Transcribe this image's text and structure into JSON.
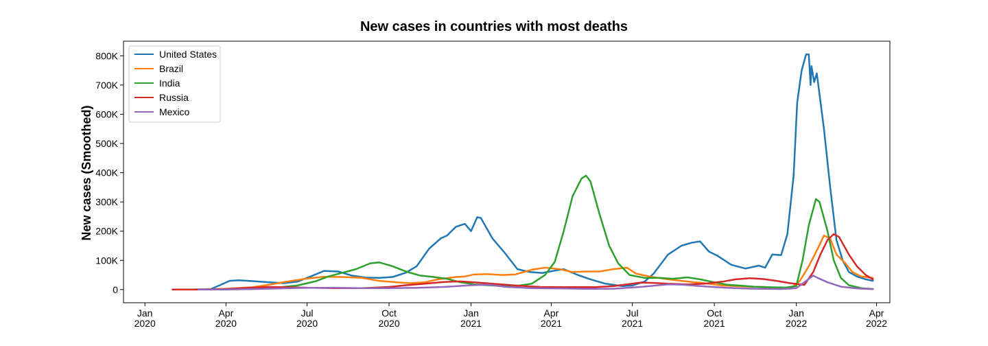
{
  "chart_data": {
    "type": "line",
    "title": "New cases in countries with most deaths",
    "xlabel": "",
    "ylabel": "New cases (Smoothed)",
    "xlim": [
      "2019-12-08",
      "2022-04-16"
    ],
    "ylim": [
      -45000,
      850000
    ],
    "legend_position": "top-left",
    "grid": false,
    "x_ticks": [
      {
        "date": "2020-01-01",
        "line1": "Jan",
        "line2": "2020"
      },
      {
        "date": "2020-04-01",
        "line1": "Apr",
        "line2": "2020"
      },
      {
        "date": "2020-07-01",
        "line1": "Jul",
        "line2": "2020"
      },
      {
        "date": "2020-10-01",
        "line1": "Oct",
        "line2": "2020"
      },
      {
        "date": "2021-01-01",
        "line1": "Jan",
        "line2": "2021"
      },
      {
        "date": "2021-04-01",
        "line1": "Apr",
        "line2": "2021"
      },
      {
        "date": "2021-07-01",
        "line1": "Jul",
        "line2": "2021"
      },
      {
        "date": "2021-10-01",
        "line1": "Oct",
        "line2": "2021"
      },
      {
        "date": "2022-01-01",
        "line1": "Jan",
        "line2": "2022"
      },
      {
        "date": "2022-04-01",
        "line1": "Apr",
        "line2": "2022"
      }
    ],
    "y_ticks": [
      {
        "value": 0,
        "label": "0"
      },
      {
        "value": 100000,
        "label": "100K"
      },
      {
        "value": 200000,
        "label": "200K"
      },
      {
        "value": 300000,
        "label": "300K"
      },
      {
        "value": 400000,
        "label": "400K"
      },
      {
        "value": 500000,
        "label": "500K"
      },
      {
        "value": 600000,
        "label": "600K"
      },
      {
        "value": 700000,
        "label": "700K"
      },
      {
        "value": 800000,
        "label": "800K"
      }
    ],
    "series": [
      {
        "name": "United States",
        "color": "#1f77b4",
        "points": [
          [
            "2020-02-22",
            0
          ],
          [
            "2020-03-15",
            2000
          ],
          [
            "2020-03-25",
            15000
          ],
          [
            "2020-04-05",
            30000
          ],
          [
            "2020-04-15",
            32000
          ],
          [
            "2020-05-01",
            29000
          ],
          [
            "2020-05-20",
            25000
          ],
          [
            "2020-06-05",
            22000
          ],
          [
            "2020-06-20",
            27000
          ],
          [
            "2020-07-05",
            45000
          ],
          [
            "2020-07-20",
            64000
          ],
          [
            "2020-08-05",
            62000
          ],
          [
            "2020-08-20",
            48000
          ],
          [
            "2020-09-05",
            41000
          ],
          [
            "2020-09-20",
            40000
          ],
          [
            "2020-10-05",
            43000
          ],
          [
            "2020-10-20",
            58000
          ],
          [
            "2020-11-01",
            80000
          ],
          [
            "2020-11-15",
            140000
          ],
          [
            "2020-11-28",
            175000
          ],
          [
            "2020-12-05",
            185000
          ],
          [
            "2020-12-15",
            215000
          ],
          [
            "2020-12-25",
            225000
          ],
          [
            "2021-01-01",
            200000
          ],
          [
            "2021-01-08",
            248000
          ],
          [
            "2021-01-12",
            245000
          ],
          [
            "2021-01-25",
            175000
          ],
          [
            "2021-02-08",
            125000
          ],
          [
            "2021-02-22",
            70000
          ],
          [
            "2021-03-08",
            60000
          ],
          [
            "2021-03-22",
            57000
          ],
          [
            "2021-04-05",
            65000
          ],
          [
            "2021-04-15",
            70000
          ],
          [
            "2021-05-01",
            50000
          ],
          [
            "2021-05-15",
            35000
          ],
          [
            "2021-06-01",
            20000
          ],
          [
            "2021-06-20",
            12000
          ],
          [
            "2021-07-01",
            14000
          ],
          [
            "2021-07-15",
            28000
          ],
          [
            "2021-07-25",
            55000
          ],
          [
            "2021-08-10",
            120000
          ],
          [
            "2021-08-25",
            150000
          ],
          [
            "2021-09-05",
            160000
          ],
          [
            "2021-09-15",
            165000
          ],
          [
            "2021-09-25",
            130000
          ],
          [
            "2021-10-05",
            115000
          ],
          [
            "2021-10-20",
            85000
          ],
          [
            "2021-11-05",
            72000
          ],
          [
            "2021-11-20",
            82000
          ],
          [
            "2021-11-27",
            75000
          ],
          [
            "2021-12-05",
            120000
          ],
          [
            "2021-12-15",
            118000
          ],
          [
            "2021-12-22",
            190000
          ],
          [
            "2021-12-29",
            390000
          ],
          [
            "2022-01-02",
            640000
          ],
          [
            "2022-01-07",
            750000
          ],
          [
            "2022-01-12",
            805000
          ],
          [
            "2022-01-15",
            805000
          ],
          [
            "2022-01-17",
            700000
          ],
          [
            "2022-01-18",
            765000
          ],
          [
            "2022-01-21",
            710000
          ],
          [
            "2022-01-24",
            740000
          ],
          [
            "2022-02-01",
            550000
          ],
          [
            "2022-02-08",
            350000
          ],
          [
            "2022-02-15",
            170000
          ],
          [
            "2022-02-22",
            100000
          ],
          [
            "2022-03-01",
            60000
          ],
          [
            "2022-03-10",
            45000
          ],
          [
            "2022-03-20",
            35000
          ],
          [
            "2022-03-28",
            30000
          ]
        ]
      },
      {
        "name": "Brazil",
        "color": "#ff7f0e",
        "points": [
          [
            "2020-03-01",
            0
          ],
          [
            "2020-04-01",
            3000
          ],
          [
            "2020-05-01",
            8000
          ],
          [
            "2020-05-20",
            17000
          ],
          [
            "2020-06-10",
            28000
          ],
          [
            "2020-07-01",
            38000
          ],
          [
            "2020-07-20",
            44000
          ],
          [
            "2020-08-10",
            43000
          ],
          [
            "2020-09-01",
            40000
          ],
          [
            "2020-09-20",
            30000
          ],
          [
            "2020-10-10",
            25000
          ],
          [
            "2020-10-25",
            22000
          ],
          [
            "2020-11-10",
            25000
          ],
          [
            "2020-11-25",
            35000
          ],
          [
            "2020-12-15",
            43000
          ],
          [
            "2020-12-25",
            45000
          ],
          [
            "2021-01-05",
            52000
          ],
          [
            "2021-01-20",
            53000
          ],
          [
            "2021-02-05",
            50000
          ],
          [
            "2021-02-20",
            52000
          ],
          [
            "2021-03-10",
            68000
          ],
          [
            "2021-03-25",
            75000
          ],
          [
            "2021-04-10",
            70000
          ],
          [
            "2021-04-25",
            60000
          ],
          [
            "2021-05-10",
            62000
          ],
          [
            "2021-05-25",
            62000
          ],
          [
            "2021-06-10",
            70000
          ],
          [
            "2021-06-25",
            75000
          ],
          [
            "2021-07-05",
            55000
          ],
          [
            "2021-07-20",
            45000
          ],
          [
            "2021-08-10",
            35000
          ],
          [
            "2021-08-25",
            30000
          ],
          [
            "2021-09-10",
            25000
          ],
          [
            "2021-09-25",
            20000
          ],
          [
            "2021-10-10",
            14000
          ],
          [
            "2021-10-25",
            12000
          ],
          [
            "2021-11-10",
            10000
          ],
          [
            "2021-11-25",
            9000
          ],
          [
            "2021-12-10",
            6000
          ],
          [
            "2021-12-25",
            3000
          ],
          [
            "2022-01-05",
            30000
          ],
          [
            "2022-01-15",
            80000
          ],
          [
            "2022-01-25",
            140000
          ],
          [
            "2022-02-01",
            185000
          ],
          [
            "2022-02-08",
            175000
          ],
          [
            "2022-02-15",
            120000
          ],
          [
            "2022-02-25",
            90000
          ],
          [
            "2022-03-05",
            60000
          ],
          [
            "2022-03-15",
            45000
          ],
          [
            "2022-03-28",
            40000
          ]
        ]
      },
      {
        "name": "India",
        "color": "#2ca02c",
        "points": [
          [
            "2020-03-01",
            0
          ],
          [
            "2020-04-01",
            500
          ],
          [
            "2020-05-01",
            2000
          ],
          [
            "2020-06-01",
            8000
          ],
          [
            "2020-06-20",
            14000
          ],
          [
            "2020-07-10",
            28000
          ],
          [
            "2020-07-25",
            45000
          ],
          [
            "2020-08-10",
            58000
          ],
          [
            "2020-08-25",
            70000
          ],
          [
            "2020-09-10",
            90000
          ],
          [
            "2020-09-20",
            93000
          ],
          [
            "2020-10-05",
            80000
          ],
          [
            "2020-10-20",
            62000
          ],
          [
            "2020-11-05",
            48000
          ],
          [
            "2020-11-20",
            43000
          ],
          [
            "2020-12-05",
            37000
          ],
          [
            "2020-12-20",
            25000
          ],
          [
            "2021-01-05",
            18000
          ],
          [
            "2021-01-20",
            15000
          ],
          [
            "2021-02-05",
            12000
          ],
          [
            "2021-02-20",
            12000
          ],
          [
            "2021-03-10",
            20000
          ],
          [
            "2021-03-25",
            50000
          ],
          [
            "2021-04-05",
            95000
          ],
          [
            "2021-04-15",
            200000
          ],
          [
            "2021-04-25",
            320000
          ],
          [
            "2021-05-05",
            380000
          ],
          [
            "2021-05-10",
            390000
          ],
          [
            "2021-05-15",
            370000
          ],
          [
            "2021-05-25",
            260000
          ],
          [
            "2021-06-05",
            150000
          ],
          [
            "2021-06-15",
            90000
          ],
          [
            "2021-06-28",
            50000
          ],
          [
            "2021-07-15",
            40000
          ],
          [
            "2021-08-01",
            40000
          ],
          [
            "2021-08-15",
            37000
          ],
          [
            "2021-09-01",
            42000
          ],
          [
            "2021-09-15",
            35000
          ],
          [
            "2021-10-01",
            25000
          ],
          [
            "2021-10-15",
            17000
          ],
          [
            "2021-11-01",
            13000
          ],
          [
            "2021-11-15",
            10000
          ],
          [
            "2021-12-01",
            8000
          ],
          [
            "2021-12-20",
            7000
          ],
          [
            "2022-01-01",
            12000
          ],
          [
            "2022-01-08",
            100000
          ],
          [
            "2022-01-15",
            220000
          ],
          [
            "2022-01-23",
            310000
          ],
          [
            "2022-01-27",
            300000
          ],
          [
            "2022-02-05",
            200000
          ],
          [
            "2022-02-12",
            100000
          ],
          [
            "2022-02-20",
            40000
          ],
          [
            "2022-03-01",
            15000
          ],
          [
            "2022-03-15",
            5000
          ],
          [
            "2022-03-28",
            2000
          ]
        ]
      },
      {
        "name": "Russia",
        "color": "#d62728",
        "points": [
          [
            "2020-02-01",
            0
          ],
          [
            "2020-03-01",
            0
          ],
          [
            "2020-04-01",
            2000
          ],
          [
            "2020-05-01",
            7000
          ],
          [
            "2020-05-20",
            9000
          ],
          [
            "2020-06-10",
            8000
          ],
          [
            "2020-07-01",
            6500
          ],
          [
            "2020-08-01",
            5000
          ],
          [
            "2020-09-01",
            5000
          ],
          [
            "2020-10-01",
            9000
          ],
          [
            "2020-10-20",
            15000
          ],
          [
            "2020-11-10",
            20000
          ],
          [
            "2020-12-01",
            26000
          ],
          [
            "2020-12-20",
            28000
          ],
          [
            "2021-01-05",
            25000
          ],
          [
            "2021-01-25",
            20000
          ],
          [
            "2021-02-20",
            14000
          ],
          [
            "2021-03-20",
            9000
          ],
          [
            "2021-04-20",
            8500
          ],
          [
            "2021-05-20",
            8500
          ],
          [
            "2021-06-10",
            12000
          ],
          [
            "2021-06-25",
            18000
          ],
          [
            "2021-07-10",
            24000
          ],
          [
            "2021-07-25",
            23000
          ],
          [
            "2021-08-10",
            20000
          ],
          [
            "2021-09-01",
            18000
          ],
          [
            "2021-09-20",
            20000
          ],
          [
            "2021-10-10",
            27000
          ],
          [
            "2021-10-25",
            35000
          ],
          [
            "2021-11-10",
            39000
          ],
          [
            "2021-11-25",
            36000
          ],
          [
            "2021-12-10",
            30000
          ],
          [
            "2021-12-25",
            22000
          ],
          [
            "2022-01-10",
            16000
          ],
          [
            "2022-01-20",
            60000
          ],
          [
            "2022-01-28",
            120000
          ],
          [
            "2022-02-05",
            170000
          ],
          [
            "2022-02-12",
            190000
          ],
          [
            "2022-02-18",
            180000
          ],
          [
            "2022-03-01",
            120000
          ],
          [
            "2022-03-10",
            80000
          ],
          [
            "2022-03-20",
            50000
          ],
          [
            "2022-03-28",
            35000
          ]
        ]
      },
      {
        "name": "Mexico",
        "color": "#9467bd",
        "points": [
          [
            "2020-03-01",
            0
          ],
          [
            "2020-04-01",
            500
          ],
          [
            "2020-05-01",
            2000
          ],
          [
            "2020-06-01",
            4000
          ],
          [
            "2020-07-01",
            6000
          ],
          [
            "2020-08-01",
            6000
          ],
          [
            "2020-09-01",
            5000
          ],
          [
            "2020-10-01",
            5000
          ],
          [
            "2020-11-01",
            6000
          ],
          [
            "2020-12-01",
            9000
          ],
          [
            "2021-01-01",
            15000
          ],
          [
            "2021-01-20",
            17000
          ],
          [
            "2021-02-10",
            9000
          ],
          [
            "2021-03-10",
            5000
          ],
          [
            "2021-04-10",
            4000
          ],
          [
            "2021-05-10",
            2500
          ],
          [
            "2021-06-10",
            3000
          ],
          [
            "2021-07-10",
            9000
          ],
          [
            "2021-08-10",
            18000
          ],
          [
            "2021-08-25",
            17000
          ],
          [
            "2021-09-15",
            12000
          ],
          [
            "2021-10-15",
            6000
          ],
          [
            "2021-11-15",
            3000
          ],
          [
            "2021-12-15",
            2000
          ],
          [
            "2022-01-01",
            5000
          ],
          [
            "2022-01-10",
            25000
          ],
          [
            "2022-01-20",
            48000
          ],
          [
            "2022-01-25",
            40000
          ],
          [
            "2022-02-05",
            25000
          ],
          [
            "2022-02-20",
            10000
          ],
          [
            "2022-03-10",
            4000
          ],
          [
            "2022-03-28",
            1500
          ]
        ]
      }
    ]
  }
}
